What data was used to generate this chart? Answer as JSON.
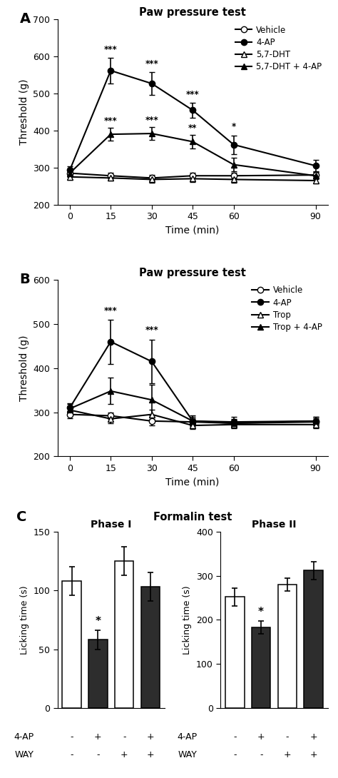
{
  "timepoints": [
    0,
    15,
    30,
    45,
    60,
    90
  ],
  "panel_A": {
    "title": "Paw pressure test",
    "ylabel": "Threshold (g)",
    "xlabel": "Time (min)",
    "ylim": [
      200,
      700
    ],
    "yticks": [
      200,
      300,
      400,
      500,
      600,
      700
    ],
    "vehicle": {
      "y": [
        285,
        278,
        272,
        278,
        278,
        280
      ],
      "yerr": [
        8,
        8,
        8,
        8,
        8,
        8
      ]
    },
    "ap4": {
      "y": [
        293,
        562,
        527,
        455,
        362,
        305
      ],
      "yerr": [
        10,
        35,
        30,
        20,
        25,
        15
      ]
    },
    "dht": {
      "y": [
        275,
        272,
        268,
        270,
        268,
        265
      ],
      "yerr": [
        8,
        8,
        8,
        8,
        8,
        8
      ]
    },
    "dht_ap4": {
      "y": [
        285,
        390,
        392,
        370,
        308,
        278
      ],
      "yerr": [
        10,
        18,
        18,
        18,
        18,
        10
      ]
    },
    "sig_ap4": {
      "15": "***",
      "30": "***",
      "45": "***",
      "60": "*"
    },
    "sig_dht_ap4": {
      "15": "***",
      "30": "***",
      "45": "**"
    }
  },
  "panel_B": {
    "title": "Paw pressure test",
    "ylabel": "Threshold (g)",
    "xlabel": "Time (min)",
    "ylim": [
      200,
      600
    ],
    "yticks": [
      200,
      300,
      400,
      500,
      600
    ],
    "vehicle": {
      "y": [
        295,
        292,
        280,
        278,
        275,
        278
      ],
      "yerr": [
        8,
        8,
        10,
        8,
        8,
        8
      ]
    },
    "ap4": {
      "y": [
        310,
        460,
        415,
        280,
        278,
        280
      ],
      "yerr": [
        10,
        50,
        50,
        12,
        12,
        10
      ]
    },
    "trop": {
      "y": [
        305,
        285,
        295,
        270,
        272,
        272
      ],
      "yerr": [
        8,
        10,
        10,
        8,
        8,
        8
      ]
    },
    "trop_ap4": {
      "y": [
        308,
        348,
        328,
        280,
        275,
        280
      ],
      "yerr": [
        10,
        30,
        35,
        10,
        10,
        10
      ]
    },
    "sig_ap4": {
      "15": "***",
      "30": "***"
    }
  },
  "panel_C": {
    "title": "Formalin test",
    "phase1": {
      "subtitle": "Phase I",
      "ylabel": "Licking time (s)",
      "ylim": [
        0,
        150
      ],
      "yticks": [
        0,
        50,
        100,
        150
      ],
      "bars": [
        108,
        58,
        125,
        103
      ],
      "yerr": [
        12,
        8,
        12,
        12
      ],
      "colors": [
        "white",
        "black",
        "white",
        "black"
      ]
    },
    "phase2": {
      "subtitle": "Phase II",
      "ylabel": "Licking time (s)",
      "ylim": [
        0,
        400
      ],
      "yticks": [
        0,
        100,
        200,
        300,
        400
      ],
      "bars": [
        252,
        183,
        280,
        312
      ],
      "yerr": [
        20,
        15,
        15,
        20
      ],
      "colors": [
        "white",
        "black",
        "white",
        "black"
      ]
    },
    "xlabels_4ap": [
      "-",
      "+",
      "-",
      "+"
    ],
    "xlabels_way": [
      "-",
      "-",
      "+",
      "+"
    ]
  },
  "legend_A": [
    "Vehicle",
    "4-AP",
    "5,7-DHT",
    "5,7-DHT + 4-AP"
  ],
  "legend_B": [
    "Vehicle",
    "4-AP",
    "Trop",
    "Trop + 4-AP"
  ]
}
